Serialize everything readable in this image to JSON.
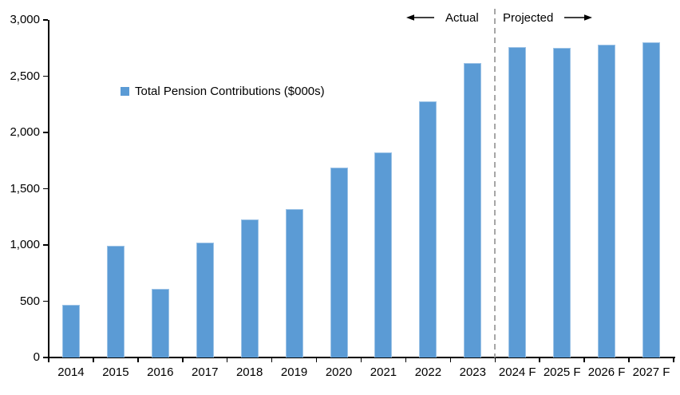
{
  "chart_data": {
    "type": "bar",
    "title": "",
    "legend_label": "Total Pension Contributions ($000s)",
    "categories": [
      "2014",
      "2015",
      "2016",
      "2017",
      "2018",
      "2019",
      "2020",
      "2021",
      "2022",
      "2023",
      "2024 F",
      "2025 F",
      "2026 F",
      "2027 F"
    ],
    "values": [
      470,
      990,
      610,
      1020,
      1230,
      1320,
      1690,
      1820,
      2280,
      2620,
      2760,
      2750,
      2780,
      2800
    ],
    "xlabel": "",
    "ylabel": "",
    "ylim": [
      0,
      3000
    ],
    "y_tick_step": 500,
    "y_tick_labels": [
      "0",
      "500",
      "1,000",
      "1,500",
      "2,000",
      "2,500",
      "3,000"
    ],
    "grid": false,
    "legend_position": "upper-left-inside",
    "bar_color": "#5B9BD5",
    "bar_edge_color": "#9DC3E6",
    "axis_color": "#000000",
    "divider_color": "#A6A6A6",
    "divider_after_category": "2023",
    "divider_after_index": 9,
    "annotations": {
      "actual": "Actual",
      "projected": "Projected"
    }
  }
}
